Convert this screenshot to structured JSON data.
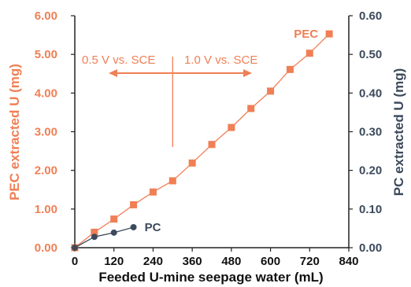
{
  "colors": {
    "pec": "#F07F55",
    "pc": "#3C4A5C",
    "axis": "#222222"
  },
  "chart_data": {
    "type": "line",
    "xlabel": "Feeded U-mine seepage water (mL)",
    "ylabel_left": "PEC extracted U (mg)",
    "ylabel_right": "PC extracted U (mg)",
    "xlim": [
      0,
      840
    ],
    "ylim_left": [
      0,
      6
    ],
    "ylim_right": [
      0,
      0.6
    ],
    "x_ticks": [
      "0",
      "120",
      "240",
      "360",
      "480",
      "600",
      "720",
      "840"
    ],
    "y_left_ticks": [
      "0.00",
      "1.00",
      "2.00",
      "3.00",
      "4.00",
      "5.00",
      "6.00"
    ],
    "y_right_ticks": [
      "0.00",
      "0.10",
      "0.20",
      "0.30",
      "0.40",
      "0.50",
      "0.60"
    ],
    "grid": false,
    "series": [
      {
        "name": "PEC",
        "axis": "left",
        "marker": "square",
        "x": [
          0,
          60,
          120,
          180,
          240,
          300,
          360,
          420,
          480,
          540,
          600,
          660,
          720,
          780
        ],
        "y": [
          0.0,
          0.4,
          0.74,
          1.11,
          1.44,
          1.73,
          2.19,
          2.67,
          3.11,
          3.6,
          4.05,
          4.61,
          5.03,
          5.53
        ]
      },
      {
        "name": "PC",
        "axis": "right",
        "marker": "circle",
        "x": [
          0,
          60,
          120,
          180
        ],
        "y": [
          0.0,
          0.028,
          0.039,
          0.053
        ]
      }
    ],
    "annotations": {
      "left_text": "0.5 V vs. SCE",
      "right_text": "1.0 V vs. SCE",
      "divider_x": 300
    }
  }
}
